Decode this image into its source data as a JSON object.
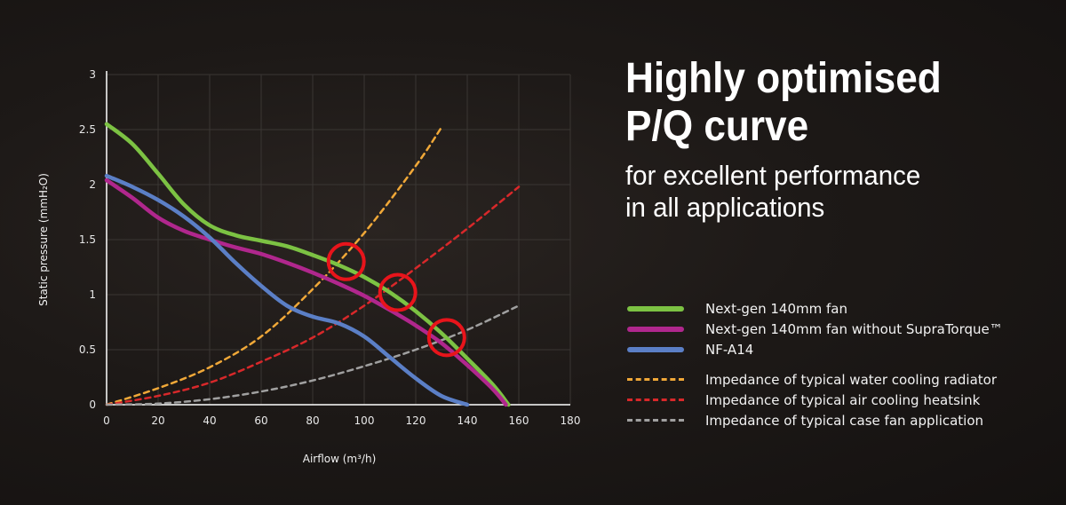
{
  "headline": {
    "line1": "Highly optimised",
    "line2": "P/Q curve",
    "sub1": "for excellent performance",
    "sub2": "in all applications"
  },
  "chart_data": {
    "type": "line",
    "xlabel": "Airflow (m³/h)",
    "ylabel": "Static pressure (mmH₂O)",
    "xlim": [
      0,
      180
    ],
    "ylim": [
      0,
      3
    ],
    "xticks": [
      "0",
      "20",
      "40",
      "60",
      "80",
      "100",
      "120",
      "140",
      "160",
      "180"
    ],
    "yticks": [
      "0",
      "0.5",
      "1",
      "1.5",
      "2",
      "2.5",
      "3"
    ],
    "grid": true,
    "series": [
      {
        "name": "Next-gen 140mm fan",
        "style": "solid",
        "color": "#7cc243",
        "x": [
          0,
          10,
          20,
          30,
          40,
          50,
          60,
          70,
          80,
          90,
          100,
          110,
          120,
          130,
          140,
          150,
          156
        ],
        "y": [
          2.55,
          2.37,
          2.1,
          1.82,
          1.63,
          1.54,
          1.49,
          1.44,
          1.36,
          1.27,
          1.16,
          1.02,
          0.85,
          0.65,
          0.42,
          0.18,
          0
        ]
      },
      {
        "name": "Next-gen 140mm fan without SupraTorque™",
        "style": "solid",
        "color": "#b0278d",
        "x": [
          0,
          10,
          20,
          30,
          40,
          50,
          60,
          70,
          80,
          90,
          100,
          110,
          120,
          130,
          140,
          150,
          155
        ],
        "y": [
          2.04,
          1.88,
          1.7,
          1.58,
          1.5,
          1.43,
          1.37,
          1.29,
          1.2,
          1.1,
          0.99,
          0.86,
          0.72,
          0.56,
          0.36,
          0.14,
          0
        ]
      },
      {
        "name": "NF-A14",
        "style": "solid",
        "color": "#5b7fc6",
        "x": [
          0,
          10,
          20,
          30,
          40,
          50,
          60,
          70,
          80,
          90,
          100,
          110,
          120,
          130,
          140
        ],
        "y": [
          2.08,
          1.98,
          1.86,
          1.71,
          1.52,
          1.29,
          1.08,
          0.9,
          0.8,
          0.74,
          0.62,
          0.43,
          0.24,
          0.08,
          0
        ]
      },
      {
        "name": "Impedance of typical water cooling radiator",
        "style": "dash",
        "color": "#f0a838",
        "x": [
          0,
          20,
          40,
          60,
          80,
          100,
          120,
          130
        ],
        "y": [
          0,
          0.15,
          0.34,
          0.62,
          1.05,
          1.56,
          2.17,
          2.52
        ]
      },
      {
        "name": "Impedance of typical air cooling heatsink",
        "style": "dash",
        "color": "#d8282a",
        "x": [
          0,
          20,
          40,
          60,
          80,
          100,
          120,
          140,
          160
        ],
        "y": [
          0,
          0.08,
          0.2,
          0.39,
          0.61,
          0.9,
          1.24,
          1.6,
          1.98
        ]
      },
      {
        "name": "Impedance of typical case fan application",
        "style": "dash",
        "color": "#a0a0a0",
        "x": [
          0,
          20,
          40,
          60,
          80,
          100,
          120,
          140,
          160
        ],
        "y": [
          0,
          0.01,
          0.05,
          0.12,
          0.22,
          0.35,
          0.5,
          0.68,
          0.9
        ]
      }
    ],
    "markers": [
      {
        "x": 93,
        "y": 1.3
      },
      {
        "x": 113,
        "y": 1.02
      },
      {
        "x": 132,
        "y": 0.61
      }
    ],
    "marker_color": "#e8141b"
  }
}
